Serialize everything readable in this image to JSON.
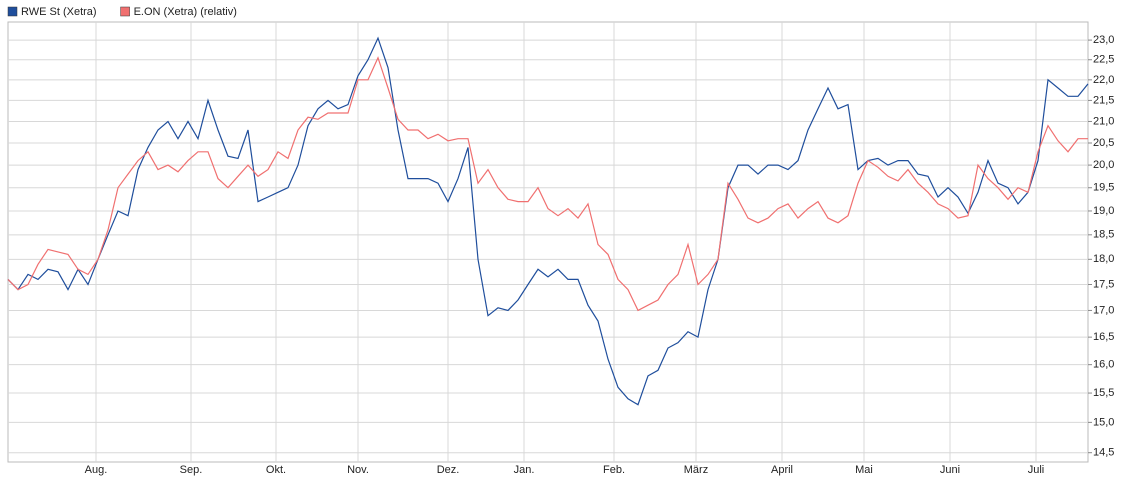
{
  "chart_data": {
    "type": "line",
    "legend": "top-left",
    "grid": true,
    "log_scale": true,
    "series": [
      {
        "name": "RWE St (Xetra)",
        "color": "#1f4e9c",
        "values": [
          17.6,
          17.4,
          17.7,
          17.6,
          17.8,
          17.75,
          17.4,
          17.8,
          17.5,
          18.0,
          18.5,
          19.0,
          18.9,
          19.9,
          20.4,
          20.8,
          21.0,
          20.6,
          21.0,
          20.6,
          21.5,
          20.8,
          20.2,
          20.15,
          20.8,
          19.2,
          19.3,
          19.4,
          19.5,
          20.0,
          20.9,
          21.3,
          21.5,
          21.3,
          21.4,
          22.1,
          22.5,
          23.05,
          22.3,
          20.8,
          19.7,
          19.7,
          19.7,
          19.6,
          19.2,
          19.7,
          20.4,
          18.0,
          16.9,
          17.05,
          17.0,
          17.2,
          17.5,
          17.8,
          17.65,
          17.8,
          17.6,
          17.6,
          17.1,
          16.8,
          16.1,
          15.6,
          15.4,
          15.3,
          15.8,
          15.9,
          16.3,
          16.4,
          16.6,
          16.5,
          17.4,
          18.0,
          19.5,
          20.0,
          20.0,
          19.8,
          20.0,
          20.0,
          19.9,
          20.1,
          20.8,
          21.3,
          21.8,
          21.3,
          21.4,
          19.9,
          20.1,
          20.15,
          20.0,
          20.1,
          20.1,
          19.8,
          19.75,
          19.3,
          19.5,
          19.3,
          18.95,
          19.4,
          20.1,
          19.6,
          19.5,
          19.15,
          19.4,
          20.1,
          22.0,
          21.8,
          21.6,
          21.6,
          21.9
        ]
      },
      {
        "name": "E.ON (Xetra) (relativ)",
        "color": "#f07070",
        "values": [
          17.6,
          17.4,
          17.5,
          17.9,
          18.2,
          18.15,
          18.1,
          17.8,
          17.7,
          18.0,
          18.6,
          19.5,
          19.8,
          20.1,
          20.3,
          19.9,
          20.0,
          19.85,
          20.1,
          20.3,
          20.3,
          19.7,
          19.5,
          19.75,
          20.0,
          19.75,
          19.9,
          20.3,
          20.15,
          20.8,
          21.1,
          21.05,
          21.2,
          21.2,
          21.2,
          22.0,
          22.0,
          22.55,
          21.8,
          21.05,
          20.8,
          20.8,
          20.6,
          20.7,
          20.55,
          20.6,
          20.6,
          19.6,
          19.9,
          19.5,
          19.25,
          19.2,
          19.2,
          19.5,
          19.05,
          18.9,
          19.05,
          18.85,
          19.15,
          18.3,
          18.1,
          17.6,
          17.4,
          17.0,
          17.1,
          17.2,
          17.5,
          17.7,
          18.3,
          17.5,
          17.7,
          18.0,
          19.6,
          19.25,
          18.85,
          18.75,
          18.85,
          19.05,
          19.15,
          18.85,
          19.05,
          19.2,
          18.85,
          18.75,
          18.9,
          19.6,
          20.1,
          19.95,
          19.75,
          19.65,
          19.9,
          19.6,
          19.4,
          19.15,
          19.05,
          18.85,
          18.9,
          20.0,
          19.7,
          19.5,
          19.25,
          19.5,
          19.4,
          20.3,
          20.9,
          20.55,
          20.3,
          20.6,
          20.6
        ]
      }
    ],
    "xlim": [
      0,
      108
    ],
    "xticks": [
      {
        "value": 8.8,
        "label": "Aug."
      },
      {
        "value": 18.3,
        "label": "Sep."
      },
      {
        "value": 26.8,
        "label": "Okt."
      },
      {
        "value": 35,
        "label": "Nov."
      },
      {
        "value": 44,
        "label": "Dez."
      },
      {
        "value": 51.6,
        "label": "Jan."
      },
      {
        "value": 60.6,
        "label": "Feb."
      },
      {
        "value": 68.8,
        "label": "März"
      },
      {
        "value": 77.4,
        "label": "April"
      },
      {
        "value": 85.6,
        "label": "Mai"
      },
      {
        "value": 94.2,
        "label": "Juni"
      },
      {
        "value": 102.8,
        "label": "Juli"
      }
    ],
    "ylim": [
      14.35,
      23.47
    ],
    "yticks": [
      {
        "value": 14.5,
        "label": "14,5"
      },
      {
        "value": 15.0,
        "label": "15,0"
      },
      {
        "value": 15.5,
        "label": "15,5"
      },
      {
        "value": 16.0,
        "label": "16,0"
      },
      {
        "value": 16.5,
        "label": "16,5"
      },
      {
        "value": 17.0,
        "label": "17,0"
      },
      {
        "value": 17.5,
        "label": "17,5"
      },
      {
        "value": 18.0,
        "label": "18,0"
      },
      {
        "value": 18.5,
        "label": "18,5"
      },
      {
        "value": 19.0,
        "label": "19,0"
      },
      {
        "value": 19.5,
        "label": "19,5"
      },
      {
        "value": 20.0,
        "label": "20,0"
      },
      {
        "value": 20.5,
        "label": "20,5"
      },
      {
        "value": 21.0,
        "label": "21,0"
      },
      {
        "value": 21.5,
        "label": "21,5"
      },
      {
        "value": 22.0,
        "label": "22,0"
      },
      {
        "value": 22.5,
        "label": "22,5"
      },
      {
        "value": 23.0,
        "label": "23,0"
      }
    ]
  }
}
